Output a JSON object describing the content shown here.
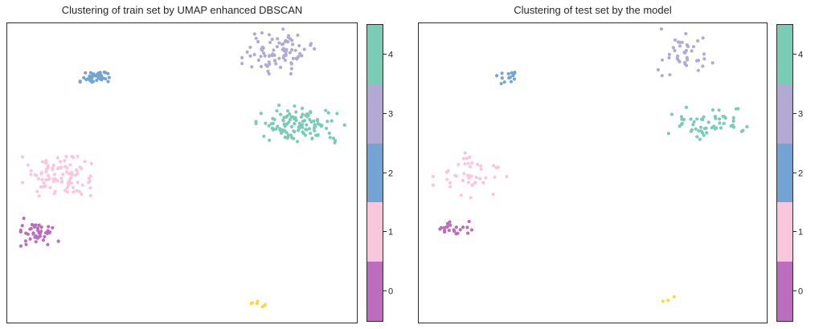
{
  "figure": {
    "background": "#ffffff",
    "border_color": "#2b2b2b",
    "text_color": "#262626"
  },
  "palette": {
    "cluster_0": "#bc6dbe",
    "cluster_1": "#f9c6dc",
    "cluster_2": "#72a5d3",
    "cluster_3": "#b2aad4",
    "cluster_4": "#7accb4",
    "noise": "#ffd92f"
  },
  "colorbar": {
    "tick_color": "#262626",
    "ticks": [
      {
        "value": "0",
        "color": "#bc6dbe"
      },
      {
        "value": "1",
        "color": "#f9c6dc"
      },
      {
        "value": "2",
        "color": "#72a5d3"
      },
      {
        "value": "3",
        "color": "#b2aad4"
      },
      {
        "value": "4",
        "color": "#7accb4"
      }
    ]
  },
  "chart_data": [
    {
      "type": "scatter",
      "title": "Clustering of train set by UMAP enhanced DBSCAN",
      "xlabel": "",
      "ylabel": "",
      "axis_ticks": "none",
      "legend": "colorbar 0-4",
      "coords": "axes_fraction_from_top_left",
      "marker": "circle",
      "clusters": [
        {
          "label": "3",
          "color": "#b2aad4",
          "center": [
            0.775,
            0.094
          ],
          "spread": [
            0.047,
            0.034
          ],
          "count": 85
        },
        {
          "label": "2",
          "color": "#72a5d3",
          "center": [
            0.25,
            0.179
          ],
          "spread": [
            0.019,
            0.012
          ],
          "count": 38
        },
        {
          "label": "4",
          "color": "#7accb4",
          "center": [
            0.839,
            0.34
          ],
          "spread": [
            0.058,
            0.03
          ],
          "count": 120
        },
        {
          "label": "1",
          "color": "#f9c6dc",
          "center": [
            0.147,
            0.511
          ],
          "spread": [
            0.047,
            0.03
          ],
          "count": 95
        },
        {
          "label": "0",
          "color": "#bc6dbe",
          "center": [
            0.089,
            0.698
          ],
          "spread": [
            0.026,
            0.021
          ],
          "count": 45
        },
        {
          "label": "noise",
          "color": "#ffd92f",
          "center": [
            0.72,
            0.939
          ],
          "spread": [
            0.01,
            0.006
          ],
          "count": 7
        }
      ]
    },
    {
      "type": "scatter",
      "title": "Clustering of test set by the model",
      "xlabel": "",
      "ylabel": "",
      "axis_ticks": "none",
      "legend": "colorbar 0-4",
      "coords": "axes_fraction_from_top_left",
      "marker": "circle",
      "clusters": [
        {
          "label": "3",
          "color": "#b2aad4",
          "center": [
            0.756,
            0.096
          ],
          "spread": [
            0.045,
            0.036
          ],
          "count": 40
        },
        {
          "label": "2",
          "color": "#72a5d3",
          "center": [
            0.263,
            0.176
          ],
          "spread": [
            0.018,
            0.013
          ],
          "count": 14
        },
        {
          "label": "4",
          "color": "#7accb4",
          "center": [
            0.839,
            0.326
          ],
          "spread": [
            0.055,
            0.028
          ],
          "count": 55
        },
        {
          "label": "1",
          "color": "#f9c6dc",
          "center": [
            0.147,
            0.508
          ],
          "spread": [
            0.048,
            0.034
          ],
          "count": 45
        },
        {
          "label": "0",
          "color": "#bc6dbe",
          "center": [
            0.097,
            0.684
          ],
          "spread": [
            0.028,
            0.022
          ],
          "count": 22
        },
        {
          "label": "noise",
          "color": "#ffd92f",
          "center": [
            0.712,
            0.928
          ],
          "spread": [
            0.01,
            0.007
          ],
          "count": 3
        }
      ]
    }
  ]
}
